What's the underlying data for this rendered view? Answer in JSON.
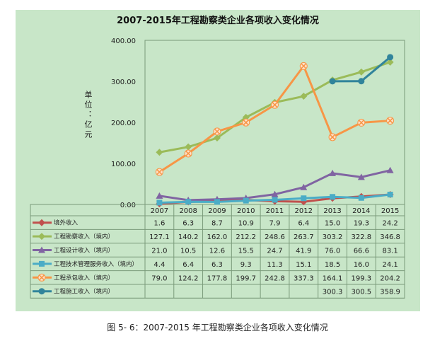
{
  "chart_data": {
    "type": "line",
    "title": "2007-2015年工程勘察类企业各项收入变化情况",
    "ylabel": "单位：亿元",
    "ylabel_chars": [
      "单",
      "位",
      "：",
      "亿",
      "元"
    ],
    "ylim": [
      0,
      400
    ],
    "yticks": [
      "0.00",
      "100.00",
      "200.00",
      "300.00",
      "400.00"
    ],
    "categories": [
      "2007",
      "2008",
      "2009",
      "2010",
      "2011",
      "2012",
      "2013",
      "2014",
      "2015"
    ],
    "grid": false,
    "legend": "table-below",
    "series": [
      {
        "name": "境外收入",
        "color": "#c0504d",
        "marker": "diamond",
        "values": [
          1.6,
          6.3,
          8.7,
          10.9,
          7.9,
          6.4,
          15.0,
          19.3,
          24.2
        ],
        "labels": [
          "1.6",
          "6.3",
          "8.7",
          "10.9",
          "7.9",
          "6.4",
          "15.0",
          "19.3",
          "24.2"
        ]
      },
      {
        "name": "工程勘察收入（境内）",
        "color": "#9bbb59",
        "marker": "diamond",
        "values": [
          127.1,
          140.2,
          162.0,
          212.2,
          248.6,
          263.7,
          303.2,
          322.8,
          346.8
        ],
        "labels": [
          "127.1",
          "140.2",
          "162.0",
          "212.2",
          "248.6",
          "263.7",
          "303.2",
          "322.8",
          "346.8"
        ]
      },
      {
        "name": "工程设计收入（境内）",
        "color": "#8064a2",
        "marker": "triangle",
        "values": [
          21.0,
          10.5,
          12.6,
          15.5,
          24.7,
          41.9,
          76.0,
          66.6,
          83.1
        ],
        "labels": [
          "21.0",
          "10.5",
          "12.6",
          "15.5",
          "24.7",
          "41.9",
          "76.0",
          "66.6",
          "83.1"
        ]
      },
      {
        "name": "工程技术管理服务收入（境内）",
        "color": "#4bacc6",
        "marker": "square",
        "values": [
          4.4,
          6.4,
          6.3,
          9.3,
          11.3,
          15.1,
          18.5,
          16.0,
          24.1
        ],
        "labels": [
          "4.4",
          "6.4",
          "6.3",
          "9.3",
          "11.3",
          "15.1",
          "18.5",
          "16.0",
          "24.1"
        ]
      },
      {
        "name": "工程承包收入（境内）",
        "color": "#f79646",
        "marker": "x",
        "values": [
          79.0,
          124.2,
          177.8,
          199.7,
          242.8,
          337.3,
          164.1,
          199.3,
          204.2
        ],
        "labels": [
          "79.0",
          "124.2",
          "177.8",
          "199.7",
          "242.8",
          "337.3",
          "164.1",
          "199.3",
          "204.2"
        ]
      },
      {
        "name": "工程施工收入（境内）",
        "color": "#31849b",
        "marker": "circle",
        "values": [
          null,
          null,
          null,
          null,
          null,
          null,
          300.3,
          300.5,
          358.9
        ],
        "labels": [
          "",
          "",
          "",
          "",
          "",
          "",
          "300.3",
          "300.5",
          "358.9"
        ]
      }
    ]
  },
  "caption": "图 5- 6：2007-2015 年工程勘察类企业各项收入变化情况"
}
